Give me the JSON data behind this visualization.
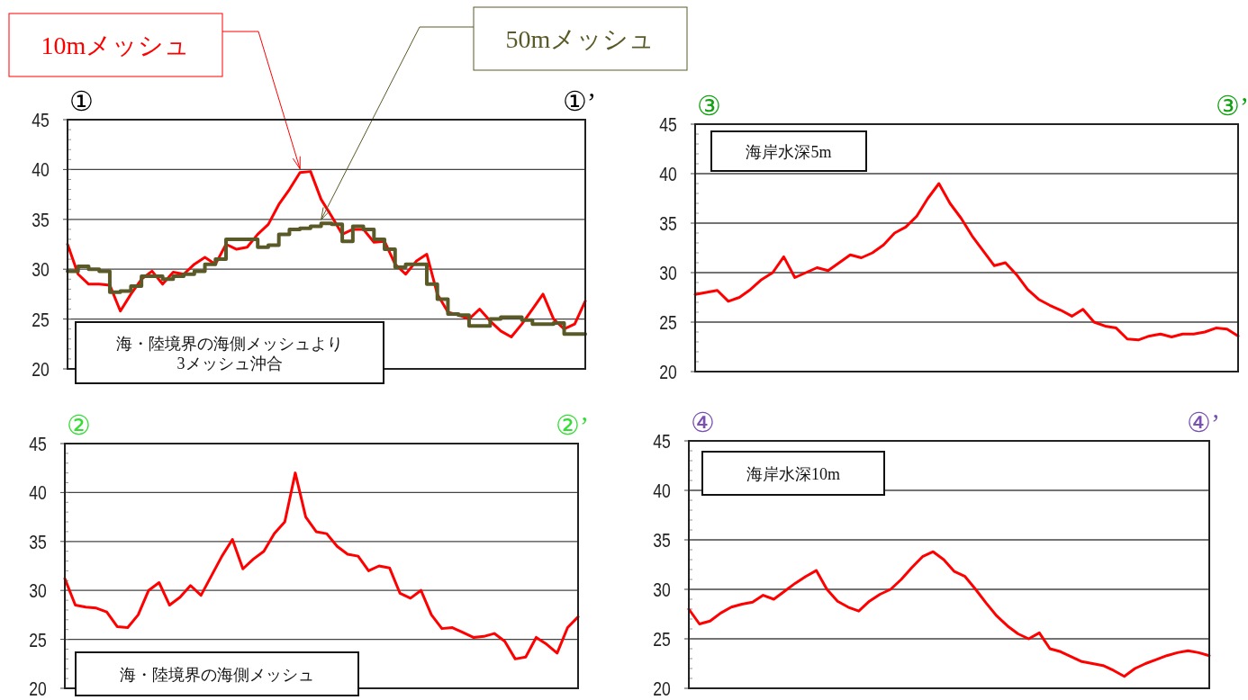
{
  "chart_data": [
    {
      "type": "line",
      "categories": [
        null,
        null,
        null,
        null,
        null,
        null,
        null,
        null,
        null,
        null,
        null,
        null,
        null,
        null,
        null,
        null,
        null,
        null,
        null,
        null,
        null,
        null,
        null,
        null,
        null,
        null,
        null,
        null,
        null,
        null,
        null,
        null,
        null,
        null,
        null,
        null,
        null,
        null,
        null,
        null,
        null,
        null,
        null,
        null,
        null,
        null,
        null,
        null,
        null,
        null
      ],
      "series": [
        {
          "name": "10mメッシュ",
          "color": "#ff0000",
          "values": [
            32.5,
            29.5,
            28.5,
            28.5,
            28.4,
            25.8,
            27.5,
            29,
            29.8,
            28.5,
            29.7,
            29.5,
            30.5,
            31.2,
            30.5,
            32.5,
            32,
            32.2,
            33.5,
            34.5,
            36.5,
            38,
            39.7,
            39.8,
            37,
            35.3,
            33.5,
            34,
            34,
            32.7,
            32.8,
            30.5,
            29.5,
            30.8,
            31.5,
            27.5,
            25.7,
            25.4,
            25,
            26,
            24.8,
            23.8,
            23.2,
            24.5,
            26,
            27.5,
            25,
            24,
            24.5,
            26.8
          ]
        },
        {
          "name": "50mメッシュ",
          "type": "step",
          "color": "#5a5a28",
          "values": [
            29.8,
            30.3,
            30,
            29.8,
            27.7,
            27.8,
            28.3,
            29.3,
            29.3,
            29,
            29.3,
            29.5,
            29.8,
            30.5,
            31,
            33,
            33,
            33,
            32.2,
            32.4,
            33.5,
            34,
            34.1,
            34.3,
            34.6,
            34.5,
            32.8,
            34.3,
            34,
            33,
            32,
            30.2,
            30.5,
            30.5,
            28.5,
            27,
            25.5,
            25.4,
            24.3,
            24.3,
            25,
            25.2,
            25.2,
            24.9,
            24.5,
            24.5,
            24.6,
            23.5,
            23.5,
            23.5
          ]
        }
      ],
      "ylim": [
        20,
        45
      ],
      "yticks": [
        20,
        25,
        30,
        35,
        40,
        45
      ],
      "grid": "y",
      "tick_labels": "y",
      "annotations": [
        "①",
        "①’",
        "海・陸境界の海側メッシュより\n3メッシュ沖合"
      ]
    },
    {
      "type": "line",
      "categories": [
        null,
        null,
        null,
        null,
        null,
        null,
        null,
        null,
        null,
        null,
        null,
        null,
        null,
        null,
        null,
        null,
        null,
        null,
        null,
        null,
        null,
        null,
        null,
        null,
        null,
        null,
        null,
        null,
        null,
        null,
        null,
        null,
        null,
        null,
        null,
        null,
        null,
        null,
        null,
        null,
        null,
        null,
        null,
        null,
        null,
        null,
        null,
        null,
        null,
        null
      ],
      "series": [
        {
          "color": "#ff0000",
          "values": [
            27.8,
            28,
            28.2,
            27.1,
            27.5,
            28.3,
            29.3,
            30,
            31.6,
            29.5,
            30,
            30.5,
            30.2,
            31,
            31.8,
            31.5,
            32,
            32.8,
            34,
            34.6,
            35.7,
            37.5,
            39,
            37,
            35.5,
            33.7,
            32.2,
            30.7,
            31,
            29.8,
            28.3,
            27.3,
            26.7,
            26.2,
            25.6,
            26.3,
            25,
            24.6,
            24.4,
            23.3,
            23.2,
            23.6,
            23.8,
            23.5,
            23.8,
            23.8,
            24,
            24.4,
            24.3,
            23.6
          ]
        }
      ],
      "ylim": [
        20,
        45
      ],
      "yticks": [
        20,
        25,
        30,
        35,
        40,
        45
      ],
      "grid": "y",
      "tick_labels": "y",
      "annotations": [
        "③",
        "③’",
        "海岸水深5m"
      ]
    },
    {
      "type": "line",
      "categories": [
        null,
        null,
        null,
        null,
        null,
        null,
        null,
        null,
        null,
        null,
        null,
        null,
        null,
        null,
        null,
        null,
        null,
        null,
        null,
        null,
        null,
        null,
        null,
        null,
        null,
        null,
        null,
        null,
        null,
        null,
        null,
        null,
        null,
        null,
        null,
        null,
        null,
        null,
        null,
        null,
        null,
        null,
        null,
        null,
        null,
        null,
        null,
        null,
        null,
        null
      ],
      "series": [
        {
          "color": "#ff0000",
          "values": [
            31.2,
            28.5,
            28.3,
            28.2,
            27.8,
            26.3,
            26.2,
            27.5,
            30,
            30.8,
            28.5,
            29.3,
            30.5,
            29.5,
            31.5,
            33.5,
            35.2,
            32.2,
            33.2,
            34,
            35.8,
            37,
            42,
            37.5,
            36,
            35.8,
            34.5,
            33.7,
            33.5,
            32,
            32.5,
            32.3,
            29.7,
            29.2,
            30,
            27.5,
            26.1,
            26.2,
            25.7,
            25.2,
            25.3,
            25.6,
            24.8,
            23,
            23.2,
            25.2,
            24.5,
            23.6,
            26.2,
            27.3
          ]
        }
      ],
      "ylim": [
        20,
        45
      ],
      "yticks": [
        20,
        25,
        30,
        35,
        40,
        45
      ],
      "grid": "y",
      "tick_labels": "y",
      "annotations": [
        "②",
        "②’",
        "海・陸境界の海側メッシュ"
      ]
    },
    {
      "type": "line",
      "categories": [
        null,
        null,
        null,
        null,
        null,
        null,
        null,
        null,
        null,
        null,
        null,
        null,
        null,
        null,
        null,
        null,
        null,
        null,
        null,
        null,
        null,
        null,
        null,
        null,
        null,
        null,
        null,
        null,
        null,
        null,
        null,
        null,
        null,
        null,
        null,
        null,
        null,
        null,
        null,
        null,
        null,
        null,
        null,
        null,
        null,
        null,
        null,
        null,
        null,
        null
      ],
      "series": [
        {
          "color": "#ff0000",
          "values": [
            28,
            26.5,
            26.8,
            27.6,
            28.2,
            28.5,
            28.7,
            29.4,
            29,
            29.8,
            30.6,
            31.3,
            31.9,
            30,
            28.8,
            28.2,
            27.8,
            28.8,
            29.5,
            30,
            31,
            32.2,
            33.3,
            33.8,
            33,
            31.8,
            31.3,
            30,
            28.6,
            27.3,
            26.3,
            25.5,
            25,
            25.6,
            24,
            23.7,
            23.2,
            22.7,
            22.5,
            22.3,
            21.8,
            21.2,
            22,
            22.5,
            22.9,
            23.3,
            23.6,
            23.8,
            23.6,
            23.3
          ]
        }
      ],
      "ylim": [
        20,
        45
      ],
      "yticks": [
        20,
        25,
        30,
        35,
        40,
        45
      ],
      "grid": "y",
      "tick_labels": "y",
      "annotations": [
        "④",
        "④’",
        "海岸水深10m"
      ]
    }
  ]
}
